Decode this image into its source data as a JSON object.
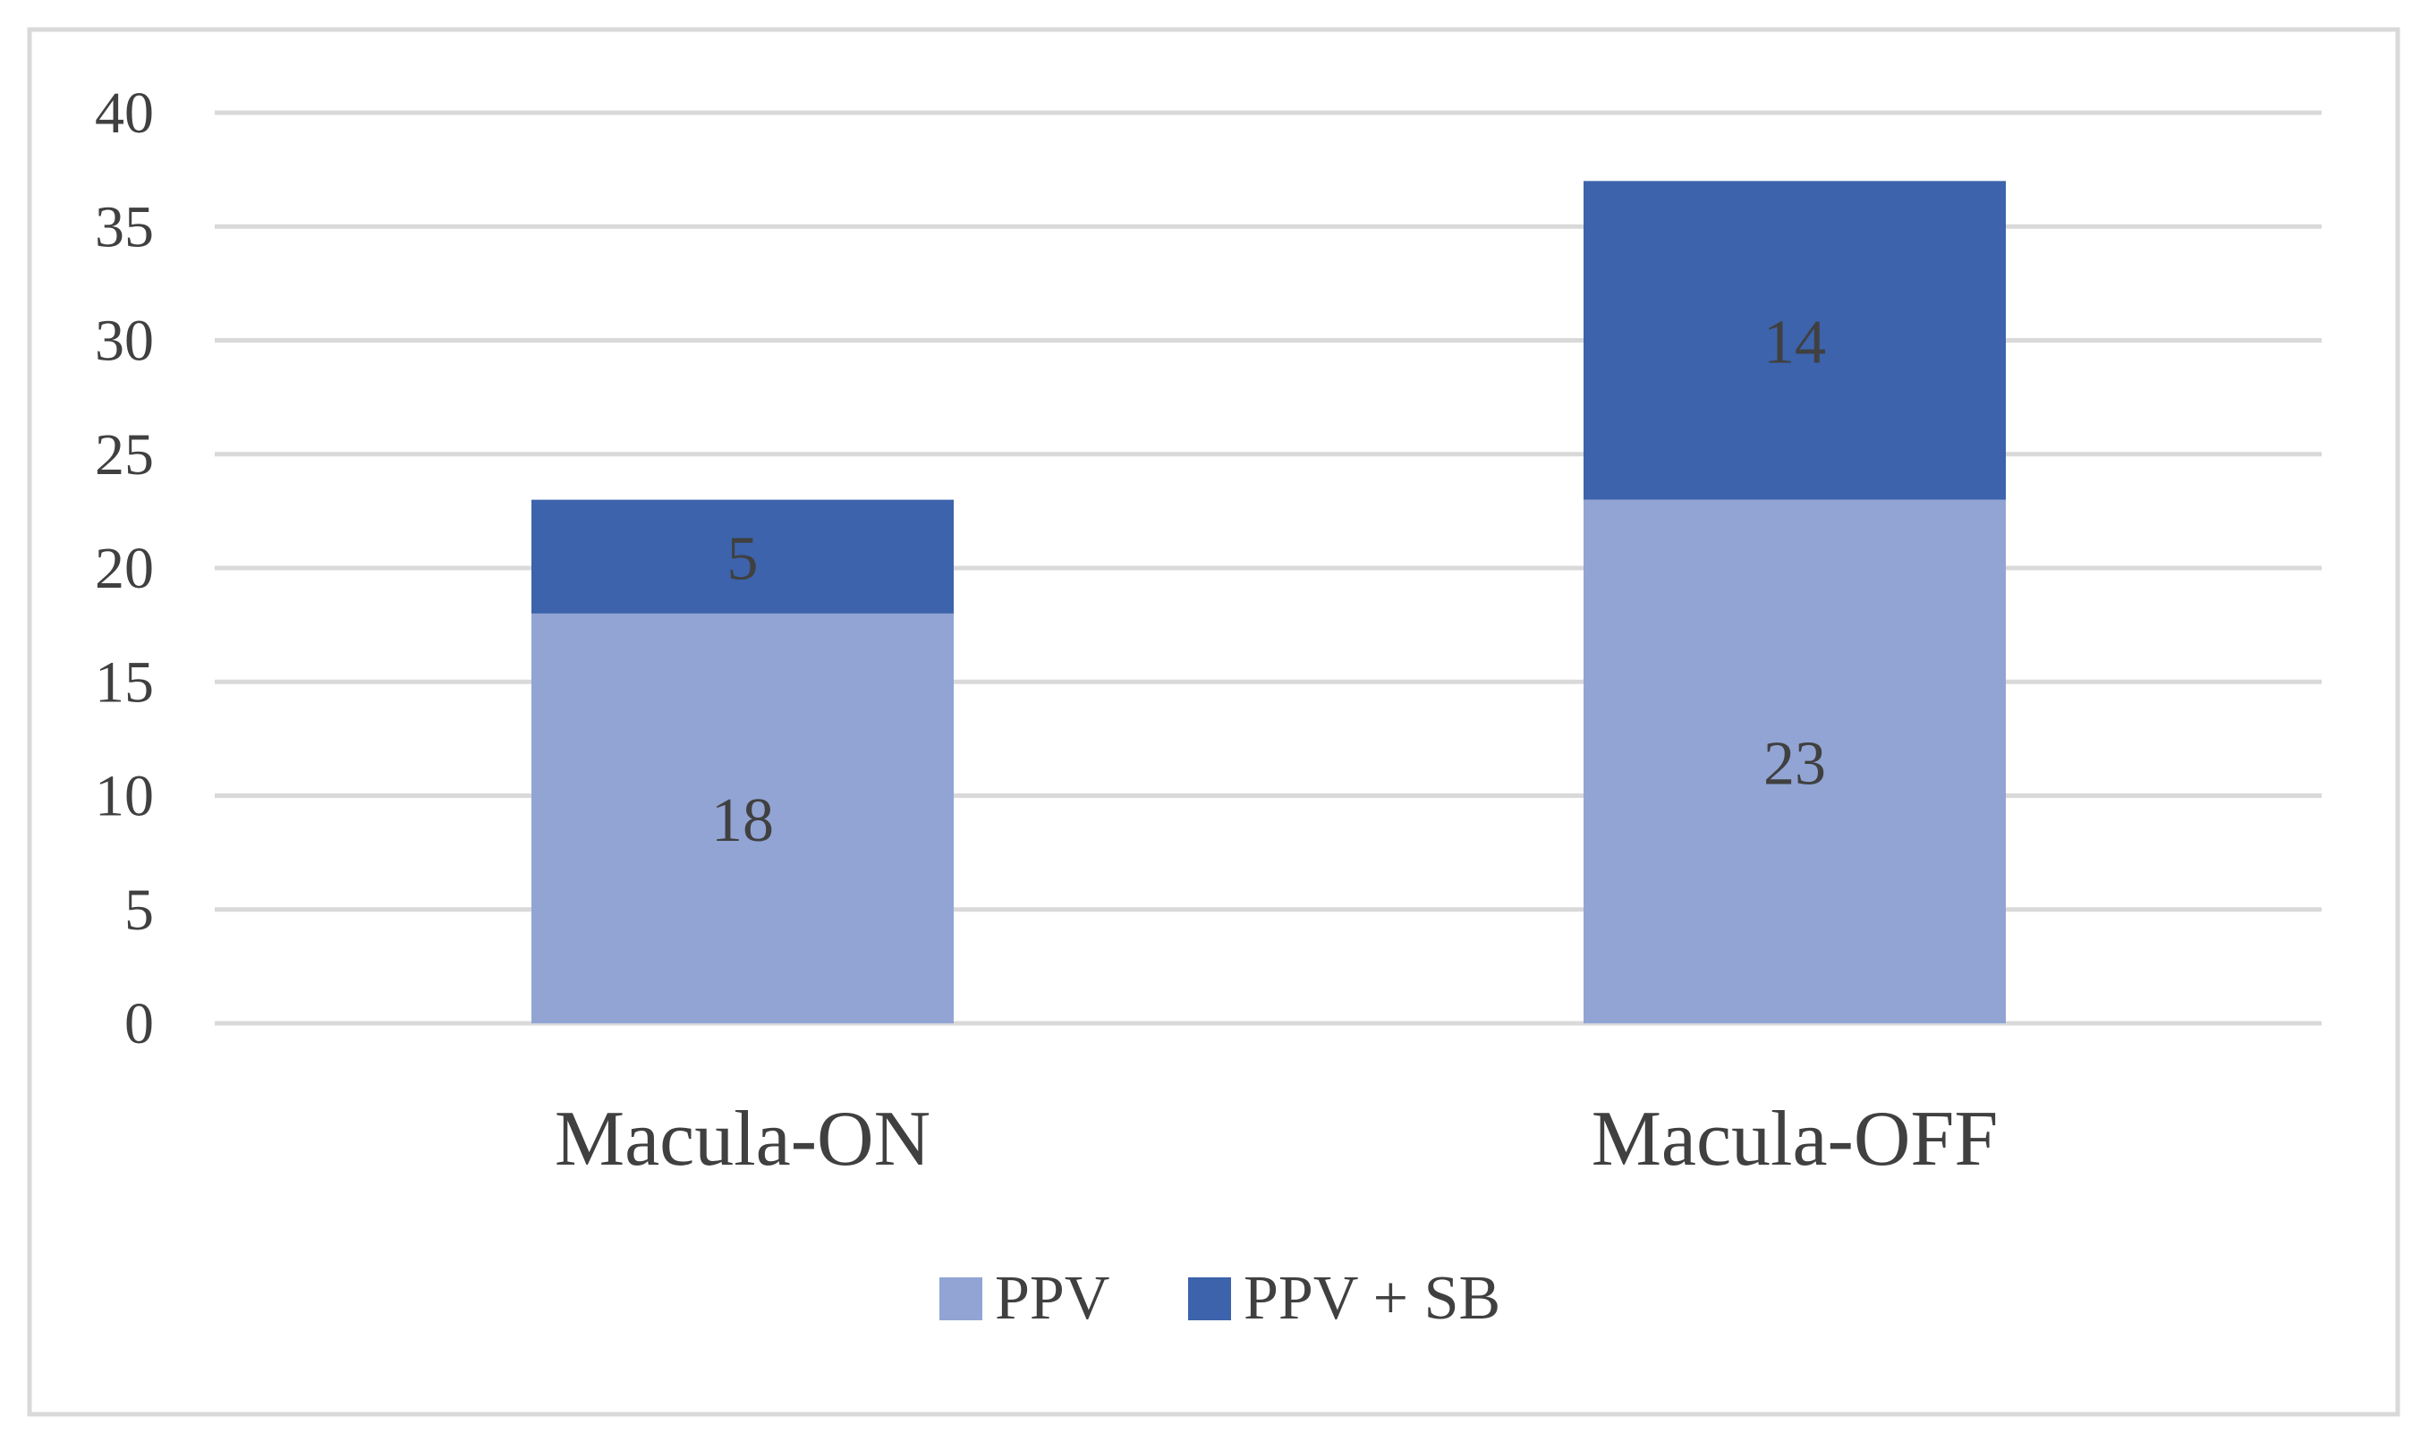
{
  "chart_data": {
    "type": "bar",
    "stacked": true,
    "categories": [
      "Macula-ON",
      "Macula-OFF"
    ],
    "series": [
      {
        "name": "PPV",
        "values": [
          18,
          23
        ],
        "color": "#91a4d4"
      },
      {
        "name": "PPV + SB",
        "values": [
          5,
          14
        ],
        "color": "#3c63ab"
      }
    ],
    "ylim": [
      0,
      40
    ],
    "yticks": [
      0,
      5,
      10,
      15,
      20,
      25,
      30,
      35,
      40
    ],
    "grid": true,
    "legend_position": "bottom",
    "data_labels": true,
    "title": "",
    "xlabel": "",
    "ylabel": ""
  },
  "colors": {
    "gridline": "#d9d9d9",
    "frame": "#d9d9d9",
    "text": "#404040"
  }
}
